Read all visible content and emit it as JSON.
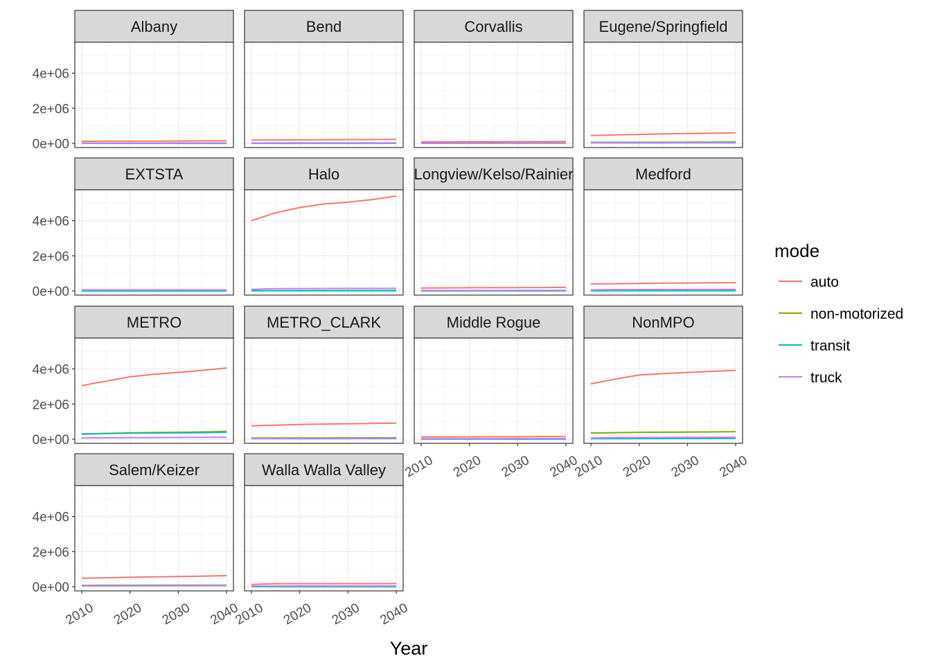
{
  "chart_data": {
    "type": "line",
    "facet_by": "region",
    "xlabel": "Year",
    "ylabel": "",
    "xlim": [
      2010,
      2040
    ],
    "ylim": [
      0,
      5600000
    ],
    "x_ticks": [
      2010,
      2020,
      2030,
      2040
    ],
    "x_tick_labels": [
      "2010",
      "2020",
      "2030",
      "2040"
    ],
    "y_ticks": [
      0,
      2000000,
      4000000
    ],
    "y_tick_labels": [
      "0e+00",
      "2e+06",
      "4e+06"
    ],
    "grid": true,
    "legend": {
      "title": "mode",
      "position": "right",
      "entries": [
        {
          "name": "auto",
          "color": "#F8766D"
        },
        {
          "name": "non-motorized",
          "color": "#7CAE00"
        },
        {
          "name": "transit",
          "color": "#00BFC4"
        },
        {
          "name": "truck",
          "color": "#C77CFF"
        }
      ]
    },
    "x": [
      2010,
      2015,
      2020,
      2025,
      2030,
      2035,
      2040
    ],
    "panels": [
      {
        "label": "Albany",
        "series": [
          {
            "name": "auto",
            "values": [
              120000,
              125000,
              130000,
              132000,
              135000,
              140000,
              145000
            ]
          },
          {
            "name": "non-motorized",
            "values": [
              10000,
              10000,
              11000,
              11000,
              12000,
              12000,
              13000
            ]
          },
          {
            "name": "transit",
            "values": [
              3000,
              3000,
              3000,
              3000,
              4000,
              4000,
              4000
            ]
          },
          {
            "name": "truck",
            "values": [
              20000,
              20000,
              21000,
              21000,
              22000,
              22000,
              23000
            ]
          }
        ]
      },
      {
        "label": "Bend",
        "series": [
          {
            "name": "auto",
            "values": [
              190000,
              195000,
              200000,
              210000,
              215000,
              220000,
              225000
            ]
          },
          {
            "name": "non-motorized",
            "values": [
              15000,
              16000,
              17000,
              18000,
              19000,
              20000,
              21000
            ]
          },
          {
            "name": "transit",
            "values": [
              3000,
              3000,
              4000,
              4000,
              4000,
              5000,
              5000
            ]
          },
          {
            "name": "truck",
            "values": [
              25000,
              26000,
              27000,
              28000,
              29000,
              30000,
              31000
            ]
          }
        ]
      },
      {
        "label": "Corvallis",
        "series": [
          {
            "name": "auto",
            "values": [
              90000,
              92000,
              95000,
              97000,
              100000,
              102000,
              105000
            ]
          },
          {
            "name": "non-motorized",
            "values": [
              20000,
              21000,
              22000,
              23000,
              24000,
              25000,
              26000
            ]
          },
          {
            "name": "transit",
            "values": [
              5000,
              5000,
              6000,
              6000,
              6000,
              7000,
              7000
            ]
          },
          {
            "name": "truck",
            "values": [
              12000,
              12000,
              13000,
              13000,
              14000,
              14000,
              15000
            ]
          }
        ]
      },
      {
        "label": "Eugene/Springfield",
        "series": [
          {
            "name": "auto",
            "values": [
              450000,
              480000,
              510000,
              540000,
              560000,
              580000,
              600000
            ]
          },
          {
            "name": "non-motorized",
            "values": [
              60000,
              62000,
              65000,
              68000,
              70000,
              75000,
              85000
            ]
          },
          {
            "name": "transit",
            "values": [
              30000,
              31000,
              32000,
              33000,
              34000,
              35000,
              36000
            ]
          },
          {
            "name": "truck",
            "values": [
              40000,
              41000,
              42000,
              43000,
              44000,
              45000,
              46000
            ]
          }
        ]
      },
      {
        "label": "EXTSTA",
        "series": [
          {
            "name": "auto",
            "values": [
              20000,
              20000,
              20000,
              20000,
              20000,
              20000,
              20000
            ]
          },
          {
            "name": "non-motorized",
            "values": [
              0,
              0,
              0,
              0,
              0,
              0,
              0
            ]
          },
          {
            "name": "transit",
            "values": [
              0,
              0,
              0,
              0,
              0,
              0,
              0
            ]
          },
          {
            "name": "truck",
            "values": [
              60000,
              60000,
              60000,
              60000,
              60000,
              60000,
              60000
            ]
          }
        ]
      },
      {
        "label": "Halo",
        "series": [
          {
            "name": "auto",
            "values": [
              4000000,
              4450000,
              4750000,
              4950000,
              5050000,
              5200000,
              5400000
            ]
          },
          {
            "name": "non-motorized",
            "values": [
              20000,
              21000,
              22000,
              23000,
              24000,
              25000,
              26000
            ]
          },
          {
            "name": "transit",
            "values": [
              10000,
              10000,
              11000,
              11000,
              12000,
              12000,
              13000
            ]
          },
          {
            "name": "truck",
            "values": [
              90000,
              130000,
              135000,
              138000,
              140000,
              142000,
              145000
            ]
          }
        ]
      },
      {
        "label": "Longview/Kelso/Rainier",
        "series": [
          {
            "name": "auto",
            "values": [
              170000,
              175000,
              180000,
              185000,
              190000,
              195000,
              200000
            ]
          },
          {
            "name": "non-motorized",
            "values": [
              10000,
              10000,
              11000,
              11000,
              12000,
              12000,
              13000
            ]
          },
          {
            "name": "transit",
            "values": [
              3000,
              3000,
              3000,
              3000,
              4000,
              4000,
              4000
            ]
          },
          {
            "name": "truck",
            "values": [
              30000,
              31000,
              32000,
              33000,
              34000,
              35000,
              36000
            ]
          }
        ]
      },
      {
        "label": "Medford",
        "series": [
          {
            "name": "auto",
            "values": [
              400000,
              410000,
              430000,
              440000,
              450000,
              460000,
              470000
            ]
          },
          {
            "name": "non-motorized",
            "values": [
              30000,
              31000,
              32000,
              33000,
              34000,
              35000,
              36000
            ]
          },
          {
            "name": "transit",
            "values": [
              8000,
              8000,
              9000,
              9000,
              10000,
              10000,
              11000
            ]
          },
          {
            "name": "truck",
            "values": [
              60000,
              75000,
              78000,
              80000,
              82000,
              84000,
              86000
            ]
          }
        ]
      },
      {
        "label": "METRO",
        "series": [
          {
            "name": "auto",
            "values": [
              3050000,
              3300000,
              3550000,
              3700000,
              3800000,
              3920000,
              4050000
            ]
          },
          {
            "name": "non-motorized",
            "values": [
              300000,
              330000,
              360000,
              380000,
              390000,
              410000,
              440000
            ]
          },
          {
            "name": "transit",
            "values": [
              280000,
              320000,
              340000,
              350000,
              360000,
              370000,
              390000
            ]
          },
          {
            "name": "truck",
            "values": [
              70000,
              80000,
              90000,
              95000,
              100000,
              105000,
              110000
            ]
          }
        ]
      },
      {
        "label": "METRO_CLARK",
        "series": [
          {
            "name": "auto",
            "values": [
              760000,
              800000,
              840000,
              860000,
              880000,
              900000,
              920000
            ]
          },
          {
            "name": "non-motorized",
            "values": [
              70000,
              72000,
              74000,
              76000,
              78000,
              80000,
              82000
            ]
          },
          {
            "name": "transit",
            "values": [
              30000,
              31000,
              32000,
              33000,
              34000,
              35000,
              36000
            ]
          },
          {
            "name": "truck",
            "values": [
              40000,
              41000,
              42000,
              43000,
              44000,
              45000,
              46000
            ]
          }
        ]
      },
      {
        "label": "Middle Rogue",
        "series": [
          {
            "name": "auto",
            "values": [
              130000,
              132000,
              135000,
              138000,
              140000,
              145000,
              150000
            ]
          },
          {
            "name": "non-motorized",
            "values": [
              10000,
              10000,
              11000,
              11000,
              12000,
              12000,
              13000
            ]
          },
          {
            "name": "transit",
            "values": [
              2000,
              2000,
              2000,
              2000,
              3000,
              3000,
              3000
            ]
          },
          {
            "name": "truck",
            "values": [
              30000,
              31000,
              32000,
              33000,
              34000,
              35000,
              36000
            ]
          }
        ]
      },
      {
        "label": "NonMPO",
        "series": [
          {
            "name": "auto",
            "values": [
              3150000,
              3420000,
              3650000,
              3730000,
              3800000,
              3860000,
              3920000
            ]
          },
          {
            "name": "non-motorized",
            "values": [
              350000,
              370000,
              390000,
              400000,
              405000,
              415000,
              430000
            ]
          },
          {
            "name": "transit",
            "values": [
              30000,
              32000,
              34000,
              36000,
              38000,
              40000,
              42000
            ]
          },
          {
            "name": "truck",
            "values": [
              70000,
              90000,
              95000,
              100000,
              103000,
              106000,
              110000
            ]
          }
        ]
      },
      {
        "label": "Salem/Keizer",
        "series": [
          {
            "name": "auto",
            "values": [
              480000,
              510000,
              540000,
              560000,
              580000,
              600000,
              630000
            ]
          },
          {
            "name": "non-motorized",
            "values": [
              80000,
              82000,
              84000,
              86000,
              88000,
              90000,
              92000
            ]
          },
          {
            "name": "transit",
            "values": [
              60000,
              62000,
              64000,
              66000,
              68000,
              70000,
              72000
            ]
          },
          {
            "name": "truck",
            "values": [
              50000,
              52000,
              54000,
              56000,
              58000,
              60000,
              62000
            ]
          }
        ]
      },
      {
        "label": "Walla Walla Valley",
        "series": [
          {
            "name": "auto",
            "values": [
              130000,
              170000,
              172000,
              174000,
              176000,
              178000,
              180000
            ]
          },
          {
            "name": "non-motorized",
            "values": [
              10000,
              10000,
              11000,
              11000,
              12000,
              12000,
              13000
            ]
          },
          {
            "name": "transit",
            "values": [
              2000,
              2000,
              2000,
              2000,
              3000,
              3000,
              3000
            ]
          },
          {
            "name": "truck",
            "values": [
              40000,
              41000,
              42000,
              43000,
              44000,
              45000,
              46000
            ]
          }
        ]
      }
    ]
  }
}
